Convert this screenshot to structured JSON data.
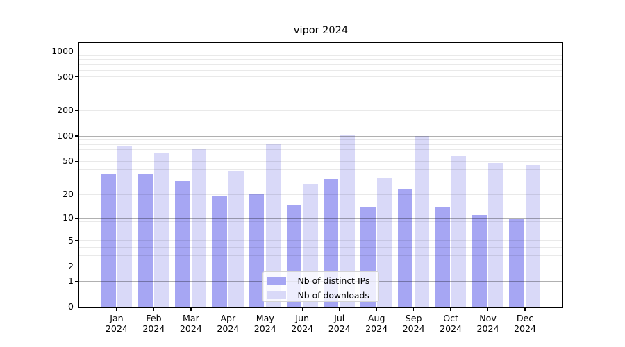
{
  "title": "vipor 2024",
  "chart_data": {
    "type": "bar",
    "title": "vipor 2024",
    "categories": [
      "Jan",
      "Feb",
      "Mar",
      "Apr",
      "May",
      "Jun",
      "Jul",
      "Aug",
      "Sep",
      "Oct",
      "Nov",
      "Dec"
    ],
    "category_year": "2024",
    "series": [
      {
        "name": "Nb of distinct IPs",
        "color": "#a6a6f3",
        "values": [
          35,
          36,
          29,
          19,
          20,
          15,
          31,
          14,
          23,
          14,
          11,
          10
        ]
      },
      {
        "name": "Nb of downloads",
        "color": "#d9d9f8",
        "values": [
          77,
          64,
          70,
          39,
          81,
          27,
          102,
          32,
          100,
          58,
          48,
          45
        ]
      }
    ],
    "y_scale": "log1p",
    "ylim": [
      0,
      1250
    ],
    "y_ticks": [
      0,
      1,
      2,
      5,
      10,
      20,
      50,
      100,
      200,
      500,
      1000
    ],
    "y_major_gridlines": [
      1,
      10,
      100,
      1000
    ],
    "y_minor_gridlines": [
      2,
      3,
      4,
      5,
      6,
      7,
      8,
      9,
      20,
      30,
      40,
      50,
      60,
      70,
      80,
      90,
      200,
      300,
      400,
      500,
      600,
      700,
      800,
      900
    ],
    "grid": true,
    "legend_position": "lower center",
    "colors": {
      "bar_distinct_ips": "#a6a6f3",
      "bar_downloads": "#d9d9f8",
      "grid_major": "rgba(0,0,0,0.31)",
      "grid_minor": "rgba(0,0,0,0.085)",
      "spine": "#000000",
      "background": "#ffffff",
      "legend_border": "#d4d4d4"
    }
  }
}
